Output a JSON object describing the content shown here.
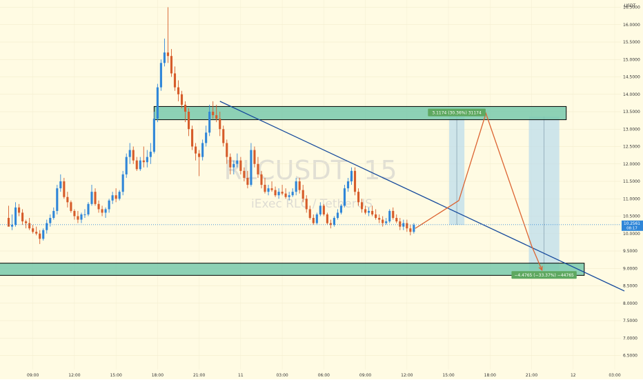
{
  "chart_data": {
    "type": "candlestick",
    "watermark": {
      "symbol": "RLCUSDT, 15",
      "name": "iExec RLC / TetherUS"
    },
    "currency": "USDT",
    "last_price": {
      "value": 10.2561,
      "label": "10.2561",
      "countdown": "08:17"
    },
    "y_ticks": [
      {
        "v": 6.5,
        "label": "6.5000"
      },
      {
        "v": 7.0,
        "label": "7.0000"
      },
      {
        "v": 7.5,
        "label": "7.5000"
      },
      {
        "v": 8.0,
        "label": "8.0000"
      },
      {
        "v": 8.5,
        "label": "8.5000"
      },
      {
        "v": 9.0,
        "label": "9.0000"
      },
      {
        "v": 9.5,
        "label": "9.5000"
      },
      {
        "v": 10.0,
        "label": "10.0000"
      },
      {
        "v": 10.5,
        "label": "10.5000"
      },
      {
        "v": 11.0,
        "label": "11.0000"
      },
      {
        "v": 11.5,
        "label": "11.5000"
      },
      {
        "v": 12.0,
        "label": "12.0000"
      },
      {
        "v": 12.5,
        "label": "12.5000"
      },
      {
        "v": 13.0,
        "label": "13.0000"
      },
      {
        "v": 13.5,
        "label": "13.5000"
      },
      {
        "v": 14.0,
        "label": "14.0000"
      },
      {
        "v": 14.5,
        "label": "14.5000"
      },
      {
        "v": 15.0,
        "label": "15.0000"
      },
      {
        "v": 15.5,
        "label": "15.5000"
      },
      {
        "v": 16.0,
        "label": "16.0000"
      },
      {
        "v": 16.5,
        "label": "16.5000"
      }
    ],
    "x_ticks": [
      {
        "t": 9,
        "label": "09:00"
      },
      {
        "t": 12,
        "label": "12:00"
      },
      {
        "t": 15,
        "label": "15:00"
      },
      {
        "t": 18,
        "label": "18:00"
      },
      {
        "t": 21,
        "label": "21:00"
      },
      {
        "t": 24,
        "label": "11"
      },
      {
        "t": 27,
        "label": "03:00"
      },
      {
        "t": 30,
        "label": "06:00"
      },
      {
        "t": 33,
        "label": "09:00"
      },
      {
        "t": 36,
        "label": "12:00"
      },
      {
        "t": 39,
        "label": "15:00"
      },
      {
        "t": 42,
        "label": "18:00"
      },
      {
        "t": 45,
        "label": "21:00"
      },
      {
        "t": 48,
        "label": "12"
      },
      {
        "t": 51,
        "label": "03:00"
      }
    ],
    "candles": [
      [
        7.25,
        10.45,
        10.8,
        10.2,
        10.2
      ],
      [
        7.5,
        10.2,
        10.55,
        10.1,
        10.25
      ],
      [
        7.75,
        10.25,
        10.9,
        10.2,
        10.75
      ],
      [
        8.0,
        10.75,
        10.85,
        10.5,
        10.6
      ],
      [
        8.25,
        10.6,
        10.7,
        10.25,
        10.35
      ],
      [
        8.5,
        10.35,
        10.4,
        10.15,
        10.3
      ],
      [
        8.75,
        10.3,
        10.45,
        10.1,
        10.15
      ],
      [
        9.0,
        10.15,
        10.25,
        10.0,
        10.05
      ],
      [
        9.25,
        10.05,
        10.2,
        9.95,
        10.0
      ],
      [
        9.5,
        10.0,
        10.1,
        9.7,
        9.85
      ],
      [
        9.75,
        9.85,
        10.15,
        9.8,
        10.1
      ],
      [
        10.0,
        10.1,
        10.4,
        10.0,
        10.3
      ],
      [
        10.25,
        10.3,
        10.55,
        10.2,
        10.45
      ],
      [
        10.5,
        10.45,
        10.75,
        10.4,
        10.65
      ],
      [
        10.75,
        10.65,
        11.4,
        10.55,
        11.3
      ],
      [
        11.0,
        11.3,
        11.7,
        11.2,
        11.5
      ],
      [
        11.25,
        11.5,
        11.6,
        11.0,
        11.05
      ],
      [
        11.5,
        11.05,
        11.2,
        10.75,
        10.9
      ],
      [
        11.75,
        10.9,
        10.95,
        10.6,
        10.65
      ],
      [
        12.0,
        10.65,
        10.7,
        10.4,
        10.5
      ],
      [
        12.25,
        10.5,
        10.65,
        10.3,
        10.4
      ],
      [
        12.5,
        10.4,
        10.6,
        10.3,
        10.55
      ],
      [
        12.75,
        10.55,
        10.7,
        10.45,
        10.55
      ],
      [
        13.0,
        10.55,
        10.9,
        10.5,
        10.85
      ],
      [
        13.25,
        10.85,
        11.4,
        10.8,
        11.2
      ],
      [
        13.5,
        11.2,
        11.3,
        10.8,
        10.85
      ],
      [
        13.75,
        10.85,
        10.95,
        10.6,
        10.7
      ],
      [
        14.0,
        10.7,
        10.8,
        10.5,
        10.6
      ],
      [
        14.25,
        10.6,
        10.75,
        10.45,
        10.7
      ],
      [
        14.5,
        10.7,
        11.0,
        10.6,
        10.95
      ],
      [
        14.75,
        10.95,
        11.2,
        10.85,
        11.1
      ],
      [
        15.0,
        11.1,
        11.3,
        10.9,
        11.0
      ],
      [
        15.25,
        11.0,
        11.25,
        10.95,
        11.2
      ],
      [
        15.5,
        11.2,
        11.8,
        11.1,
        11.7
      ],
      [
        15.75,
        11.7,
        12.3,
        11.6,
        12.2
      ],
      [
        16.0,
        12.2,
        12.6,
        12.0,
        12.4
      ],
      [
        16.25,
        12.4,
        12.5,
        12.0,
        12.1
      ],
      [
        16.5,
        12.1,
        12.2,
        11.8,
        11.85
      ],
      [
        16.75,
        11.85,
        12.2,
        11.8,
        12.1
      ],
      [
        17.0,
        12.1,
        12.5,
        11.9,
        12.05
      ],
      [
        17.25,
        12.05,
        12.4,
        11.9,
        12.2
      ],
      [
        17.5,
        12.2,
        12.6,
        12.0,
        12.35
      ],
      [
        17.75,
        12.35,
        13.5,
        12.3,
        13.3
      ],
      [
        18.0,
        13.3,
        14.3,
        13.2,
        14.2
      ],
      [
        18.25,
        14.2,
        15.0,
        14.1,
        14.9
      ],
      [
        18.5,
        14.9,
        15.6,
        14.8,
        15.2
      ],
      [
        18.75,
        15.2,
        16.5,
        14.9,
        15.1
      ],
      [
        19.0,
        15.1,
        15.3,
        14.5,
        14.6
      ],
      [
        19.25,
        14.6,
        14.8,
        14.1,
        14.2
      ],
      [
        19.5,
        14.2,
        14.4,
        13.8,
        14.0
      ],
      [
        19.75,
        14.0,
        14.1,
        13.6,
        13.7
      ],
      [
        20.0,
        13.7,
        13.8,
        13.2,
        13.5
      ],
      [
        20.25,
        13.5,
        13.6,
        12.8,
        13.0
      ],
      [
        20.5,
        13.0,
        13.1,
        12.4,
        12.5
      ],
      [
        20.75,
        12.5,
        12.6,
        12.1,
        12.3
      ],
      [
        21.0,
        12.3,
        12.4,
        11.65,
        12.2
      ],
      [
        21.25,
        12.2,
        12.7,
        12.1,
        12.6
      ],
      [
        21.5,
        12.6,
        13.1,
        12.5,
        12.9
      ],
      [
        21.75,
        12.9,
        13.7,
        12.8,
        13.5
      ],
      [
        22.0,
        13.5,
        13.8,
        13.3,
        13.4
      ],
      [
        22.25,
        13.4,
        13.7,
        13.2,
        13.3
      ],
      [
        22.5,
        13.3,
        13.5,
        12.8,
        13.0
      ],
      [
        22.75,
        13.0,
        13.1,
        12.5,
        12.6
      ],
      [
        23.0,
        12.6,
        12.7,
        12.0,
        12.2
      ],
      [
        23.25,
        12.2,
        12.3,
        11.7,
        11.9
      ],
      [
        23.5,
        11.9,
        12.1,
        11.7,
        12.0
      ],
      [
        23.75,
        12.0,
        12.3,
        11.9,
        12.1
      ],
      [
        24.0,
        12.1,
        12.2,
        11.7,
        11.8
      ],
      [
        24.25,
        11.8,
        11.9,
        11.5,
        11.6
      ],
      [
        24.5,
        11.6,
        11.8,
        11.3,
        11.4
      ],
      [
        24.75,
        11.4,
        12.6,
        11.35,
        12.4
      ],
      [
        25.0,
        12.4,
        12.5,
        11.9,
        12.0
      ],
      [
        25.25,
        12.0,
        12.2,
        11.6,
        11.7
      ],
      [
        25.5,
        11.7,
        11.8,
        11.3,
        11.4
      ],
      [
        25.75,
        11.4,
        11.6,
        11.15,
        11.2
      ],
      [
        26.0,
        11.2,
        11.4,
        11.1,
        11.3
      ],
      [
        26.25,
        11.3,
        11.5,
        11.2,
        11.25
      ],
      [
        26.5,
        11.25,
        11.35,
        11.05,
        11.1
      ],
      [
        26.75,
        11.1,
        11.3,
        11.0,
        11.2
      ],
      [
        27.0,
        11.2,
        11.4,
        11.1,
        11.15
      ],
      [
        27.25,
        11.15,
        11.3,
        11.0,
        11.05
      ],
      [
        27.5,
        11.05,
        11.2,
        10.95,
        11.1
      ],
      [
        27.75,
        11.1,
        11.3,
        11.05,
        11.2
      ],
      [
        28.0,
        11.2,
        11.6,
        11.1,
        11.5
      ],
      [
        28.25,
        11.5,
        11.6,
        11.15,
        11.25
      ],
      [
        28.5,
        11.25,
        11.4,
        10.9,
        11.0
      ],
      [
        28.75,
        11.0,
        11.1,
        10.6,
        10.7
      ],
      [
        29.0,
        10.7,
        10.8,
        10.4,
        10.45
      ],
      [
        29.25,
        10.45,
        10.55,
        10.25,
        10.3
      ],
      [
        29.5,
        10.3,
        10.6,
        10.25,
        10.55
      ],
      [
        29.75,
        10.55,
        10.9,
        10.5,
        10.8
      ],
      [
        30.0,
        10.8,
        10.85,
        10.5,
        10.55
      ],
      [
        30.25,
        10.55,
        10.6,
        10.25,
        10.3
      ],
      [
        30.5,
        10.3,
        10.4,
        10.15,
        10.25
      ],
      [
        30.75,
        10.25,
        10.5,
        10.2,
        10.45
      ],
      [
        31.0,
        10.45,
        10.7,
        10.4,
        10.6
      ],
      [
        31.25,
        10.6,
        10.85,
        10.55,
        10.8
      ],
      [
        31.5,
        10.8,
        11.4,
        10.75,
        11.3
      ],
      [
        31.75,
        11.3,
        11.6,
        11.2,
        11.5
      ],
      [
        32.0,
        11.5,
        11.9,
        11.4,
        11.8
      ],
      [
        32.25,
        11.8,
        11.9,
        11.1,
        11.2
      ],
      [
        32.5,
        11.2,
        11.3,
        10.8,
        10.9
      ],
      [
        32.75,
        10.9,
        11.0,
        10.6,
        10.7
      ],
      [
        33.0,
        10.7,
        10.8,
        10.55,
        10.6
      ],
      [
        33.25,
        10.6,
        10.75,
        10.5,
        10.65
      ],
      [
        33.5,
        10.65,
        10.8,
        10.5,
        10.55
      ],
      [
        33.75,
        10.55,
        10.7,
        10.4,
        10.45
      ],
      [
        34.0,
        10.45,
        10.55,
        10.3,
        10.4
      ],
      [
        34.25,
        10.4,
        10.5,
        10.2,
        10.3
      ],
      [
        34.5,
        10.3,
        10.45,
        10.25,
        10.35
      ],
      [
        34.75,
        10.35,
        10.7,
        10.3,
        10.65
      ],
      [
        35.0,
        10.65,
        10.75,
        10.4,
        10.45
      ],
      [
        35.25,
        10.45,
        10.55,
        10.3,
        10.35
      ],
      [
        35.5,
        10.35,
        10.45,
        10.1,
        10.2
      ],
      [
        35.75,
        10.2,
        10.4,
        10.1,
        10.3
      ],
      [
        36.0,
        10.3,
        10.4,
        10.05,
        10.15
      ],
      [
        36.25,
        10.15,
        10.25,
        9.95,
        10.05
      ],
      [
        36.5,
        10.05,
        10.3,
        10.0,
        10.25
      ]
    ],
    "zones": [
      {
        "name": "resistance",
        "t0": 17.75,
        "t1": 47.5,
        "v_top": 13.65,
        "v_bot": 13.27
      },
      {
        "name": "support",
        "t0": 6.0,
        "t1": 48.8,
        "v_top": 9.15,
        "v_bot": 8.8
      }
    ],
    "trendline": {
      "t0": 22.5,
      "v0": 13.8,
      "t1": 51.7,
      "v1": 8.35
    },
    "measure_boxes": [
      {
        "name": "long-measure",
        "t0": 39.05,
        "t1": 40.15,
        "v_top": 13.36,
        "v_bot": 10.25,
        "label": "3.1174 (30.36%) 31174",
        "label_at": "top",
        "label_bg": "#5ea860"
      },
      {
        "name": "short-measure",
        "t0": 44.8,
        "t1": 47.0,
        "v_top": 13.36,
        "v_bot": 8.95,
        "label": "−4.4765 (−33.37%) −44765",
        "label_at": "bottom",
        "label_bg": "#5ea860"
      }
    ],
    "projection": [
      {
        "t": 36.6,
        "v": 10.15
      },
      {
        "t": 39.75,
        "v": 10.95
      },
      {
        "t": 41.7,
        "v": 13.45
      },
      {
        "t": 45.0,
        "v": 9.65
      },
      {
        "t": 45.75,
        "v": 8.95
      }
    ],
    "colors": {
      "background": "#fffbe3",
      "up": "#2f86d8",
      "down": "#d65c2a",
      "zone_fill": "#79c9ad",
      "measure_fill": "#b9dcec",
      "trendline": "#164a9c",
      "projection": "#dc6331",
      "last_price": "#2f86d8",
      "axis_text": "#333333"
    }
  }
}
